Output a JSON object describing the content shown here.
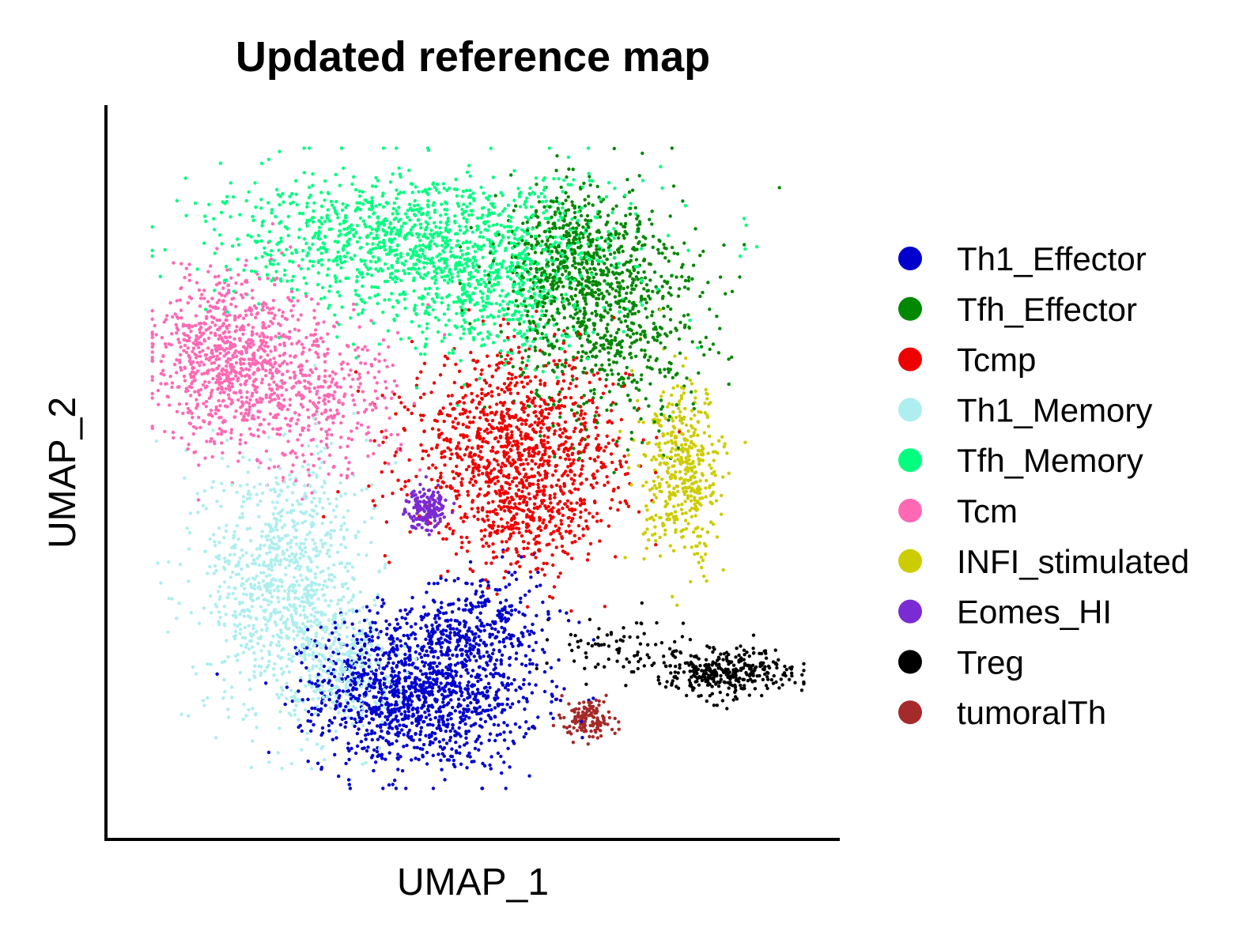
{
  "chart_data": {
    "type": "scatter",
    "title": "Updated reference map",
    "xlabel": "UMAP_1",
    "ylabel": "UMAP_2",
    "xlim": [
      -10,
      10
    ],
    "ylim": [
      -10,
      10
    ],
    "grid": false,
    "legend_position": "right",
    "series": [
      {
        "name": "Th1_Effector",
        "color": "#0000CC",
        "clusters": [
          {
            "cx": -1.3,
            "cy": -6.8,
            "sx": 1.6,
            "sy": 1.2,
            "n": 1100
          },
          {
            "cx": -3.0,
            "cy": -6.5,
            "sx": 1.0,
            "sy": 1.0,
            "n": 300
          },
          {
            "cx": 0.2,
            "cy": -4.6,
            "sx": 1.0,
            "sy": 0.8,
            "n": 250
          }
        ]
      },
      {
        "name": "Tfh_Effector",
        "color": "#008800",
        "clusters": [
          {
            "cx": 4.0,
            "cy": 4.8,
            "sx": 1.4,
            "sy": 1.7,
            "n": 800
          },
          {
            "cx": 2.6,
            "cy": 6.5,
            "sx": 1.0,
            "sy": 1.0,
            "n": 350
          }
        ]
      },
      {
        "name": "Tcmp",
        "color": "#EE0000",
        "clusters": [
          {
            "cx": 1.2,
            "cy": 0.6,
            "sx": 1.6,
            "sy": 1.4,
            "n": 1100
          },
          {
            "cx": 1.6,
            "cy": -1.6,
            "sx": 1.0,
            "sy": 0.8,
            "n": 250
          }
        ]
      },
      {
        "name": "Th1_Memory",
        "color": "#AEEEEE",
        "clusters": [
          {
            "cx": -5.7,
            "cy": -3.5,
            "sx": 1.2,
            "sy": 2.0,
            "n": 1000
          },
          {
            "cx": -4.0,
            "cy": -6.0,
            "sx": 0.8,
            "sy": 0.8,
            "n": 250
          }
        ]
      },
      {
        "name": "Tfh_Memory",
        "color": "#00FF7F",
        "clusters": [
          {
            "cx": -1.5,
            "cy": 6.8,
            "sx": 3.0,
            "sy": 1.1,
            "n": 1300
          },
          {
            "cx": 0.5,
            "cy": 5.0,
            "sx": 1.2,
            "sy": 1.0,
            "n": 300
          }
        ]
      },
      {
        "name": "Tcm",
        "color": "#FF69B4",
        "clusters": [
          {
            "cx": -7.2,
            "cy": 3.3,
            "sx": 1.2,
            "sy": 1.3,
            "n": 900
          },
          {
            "cx": -4.5,
            "cy": 2.0,
            "sx": 1.1,
            "sy": 1.2,
            "n": 300
          }
        ]
      },
      {
        "name": "INFI_stimulated",
        "color": "#CCCC00",
        "clusters": [
          {
            "cx": 6.2,
            "cy": -0.2,
            "sx": 0.6,
            "sy": 1.3,
            "n": 450
          }
        ]
      },
      {
        "name": "Eomes_HI",
        "color": "#7B2BD3",
        "clusters": [
          {
            "cx": -1.5,
            "cy": -1.2,
            "sx": 0.3,
            "sy": 0.3,
            "n": 180
          }
        ]
      },
      {
        "name": "Treg",
        "color": "#000000",
        "clusters": [
          {
            "cx": 7.5,
            "cy": -6.2,
            "sx": 1.0,
            "sy": 0.35,
            "n": 350
          },
          {
            "cx": 4.3,
            "cy": -5.4,
            "sx": 1.0,
            "sy": 0.5,
            "n": 80
          }
        ]
      },
      {
        "name": "tumoralTh",
        "color": "#A52A2A",
        "clusters": [
          {
            "cx": 3.4,
            "cy": -7.6,
            "sx": 0.35,
            "sy": 0.3,
            "n": 140
          }
        ]
      }
    ]
  }
}
